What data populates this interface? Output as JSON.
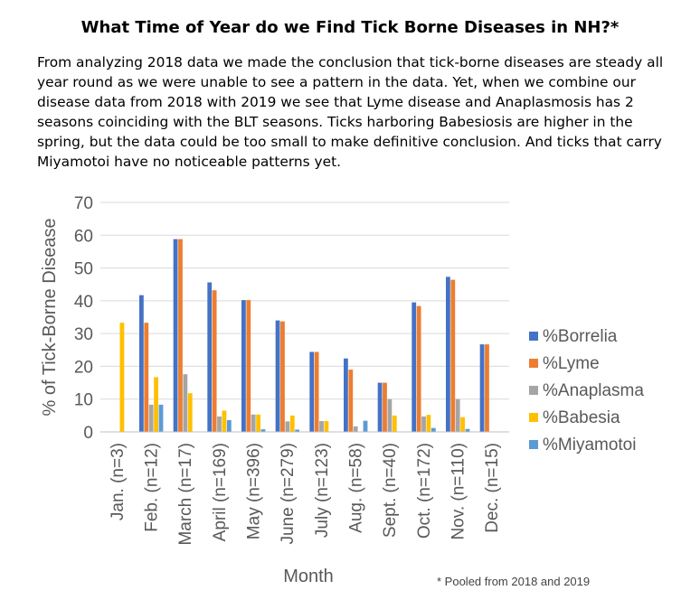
{
  "header": {
    "title": "What Time of Year do we Find Tick Borne Diseases in NH?*",
    "paragraph": "From analyzing 2018 data we made the conclusion that tick-borne diseases are steady all year round as we were unable to see a pattern in the data. Yet, when we combine our disease data from 2018 with 2019 we see that Lyme disease and Anaplasmosis has 2 seasons coinciding with the BLT seasons. Ticks harboring Babesiosis are higher in the spring, but the data could be too small to make definitive conclusion. And ticks that carry Miyamotoi have no noticeable patterns yet."
  },
  "footnote": "* Pooled from 2018 and 2019",
  "chart_data": {
    "type": "bar",
    "xlabel": "Month",
    "ylabel": "% of Tick-Borne Disease",
    "ylim": [
      0,
      70
    ],
    "yticks": [
      0,
      10,
      20,
      30,
      40,
      50,
      60,
      70
    ],
    "grid": true,
    "legend_position": "right",
    "categories": [
      "Jan. (n=3)",
      "Feb. (n=12)",
      "March (n=17)",
      "April (n=169)",
      "May (n=396)",
      "June (n=279)",
      "July (n=123)",
      "Aug. (n=58)",
      "Sept. (n=40)",
      "Oct. (n=172)",
      "Nov. (n=110)",
      "Dec. (n=15)"
    ],
    "series": [
      {
        "name": "%Borrelia",
        "color": "#4472c4",
        "values": [
          0,
          41.7,
          58.8,
          45.6,
          40.2,
          34.0,
          24.4,
          22.4,
          15.0,
          39.5,
          47.3,
          26.7
        ]
      },
      {
        "name": "%Lyme",
        "color": "#ed7d31",
        "values": [
          0,
          33.3,
          58.8,
          43.2,
          40.2,
          33.7,
          24.4,
          19.0,
          15.0,
          38.4,
          46.4,
          26.7
        ]
      },
      {
        "name": "%Anaplasma",
        "color": "#a5a5a5",
        "values": [
          0,
          8.3,
          17.6,
          4.7,
          5.3,
          3.2,
          3.3,
          1.7,
          10.0,
          4.7,
          10.0,
          0
        ]
      },
      {
        "name": "%Babesia",
        "color": "#ffc000",
        "values": [
          33.3,
          16.7,
          11.8,
          6.5,
          5.3,
          5.0,
          3.3,
          0,
          5.0,
          5.2,
          4.5,
          0
        ]
      },
      {
        "name": "%Miyamotoi",
        "color": "#5b9bd5",
        "values": [
          0,
          8.3,
          0,
          3.6,
          0.8,
          0.7,
          0,
          3.4,
          0,
          1.2,
          0.9,
          0
        ]
      }
    ]
  }
}
